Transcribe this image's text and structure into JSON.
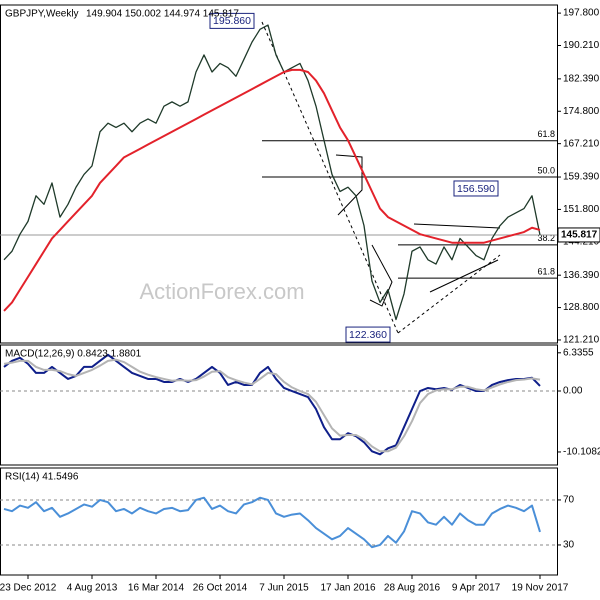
{
  "chart_data": [
    {
      "type": "line",
      "title": "GBPJPY,Weekly",
      "ohlc": "149.904 150.002 144.974 145.817",
      "ylim": [
        120.5,
        199.7
      ],
      "yticks": [
        {
          "value": 197.8,
          "label": "197.800"
        },
        {
          "value": 190.21,
          "label": "190.210"
        },
        {
          "value": 182.39,
          "label": "182.390"
        },
        {
          "value": 174.8,
          "label": "174.800"
        },
        {
          "value": 167.21,
          "label": "167.210"
        },
        {
          "value": 159.39,
          "label": "159.390"
        },
        {
          "value": 151.8,
          "label": "151.800"
        },
        {
          "value": 144.21,
          "label": "144.210"
        },
        {
          "value": 136.39,
          "label": "136.390"
        },
        {
          "value": 128.8,
          "label": "128.800"
        },
        {
          "value": 121.21,
          "label": "121.210"
        }
      ],
      "grid": false,
      "series": [
        {
          "name": "GBPJPY",
          "color": "#1f3a2a",
          "values": [
            140,
            142,
            146,
            149,
            155,
            153,
            158,
            150,
            153,
            157,
            160,
            162,
            170,
            172,
            171,
            172,
            170,
            172,
            173,
            172,
            176,
            177,
            176,
            177,
            184,
            188,
            184,
            186,
            185,
            183,
            187,
            191,
            194,
            195,
            188,
            184,
            185,
            186,
            182,
            176,
            168,
            160,
            156,
            157,
            155,
            148,
            135,
            130,
            133,
            126,
            132,
            142,
            143,
            140,
            139,
            143,
            140,
            145,
            143,
            141,
            140,
            145,
            148,
            150,
            151,
            152,
            155,
            145.817
          ]
        },
        {
          "name": "MA",
          "color": "#e3222b",
          "values": [
            128,
            130,
            133,
            136,
            139,
            142,
            145,
            147,
            149,
            151,
            153,
            155,
            158,
            160,
            162,
            164,
            165,
            166,
            167,
            168,
            169,
            170,
            171,
            172,
            173,
            174,
            175,
            176,
            177,
            178,
            179,
            180,
            181,
            182,
            183,
            184,
            184.5,
            184.5,
            184,
            182,
            179,
            175,
            171,
            168,
            164,
            160,
            156,
            152,
            150,
            149,
            148,
            147,
            146,
            145.5,
            145,
            144.5,
            144,
            144,
            144,
            144,
            144,
            144.5,
            145,
            145.5,
            146,
            146.5,
            147.5,
            147
          ]
        }
      ],
      "levels": [
        {
          "label": "61.8",
          "value": 167.9
        },
        {
          "label": "50.0",
          "value": 159.4
        },
        {
          "label": "38.2",
          "value": 143.5
        },
        {
          "label": "61.8",
          "value": 135.7
        }
      ],
      "annotations": [
        {
          "label": "195.860",
          "value": 195.86
        },
        {
          "label": "122.360",
          "value": 122.36
        },
        {
          "label": "156.590",
          "value": 156.59
        }
      ],
      "last": {
        "label": "145.817",
        "value": 145.817
      },
      "watermark": "ActionForex.com"
    },
    {
      "type": "line",
      "title": "MACD(12,26,9) 0.8423 1.8801",
      "ylim": [
        -12.27,
        7.63
      ],
      "yticks": [
        6.3355,
        {
          "value": 0,
          "label": "0.00"
        },
        -10.1082
      ],
      "zero_line": true,
      "series": [
        {
          "name": "MACD",
          "color": "#0f1f8a",
          "values": [
            4,
            5,
            5.5,
            4.5,
            3,
            3,
            4,
            3,
            2,
            2.5,
            4,
            4,
            5,
            6,
            5,
            4,
            3,
            2.5,
            2,
            2,
            1.5,
            1.5,
            2,
            1.5,
            2,
            3,
            4,
            3,
            1,
            1.5,
            1,
            1,
            3,
            4,
            2,
            0.5,
            0,
            -0.5,
            -1,
            -3,
            -6,
            -8,
            -8,
            -7,
            -7.5,
            -8.5,
            -10,
            -10.5,
            -9.5,
            -9,
            -6,
            -3,
            0,
            0.5,
            0.3,
            0.5,
            0.2,
            1,
            0.5,
            0,
            0,
            1,
            1.5,
            1.8,
            2,
            2,
            2.2,
            0.8423
          ]
        },
        {
          "name": "Signal",
          "color": "#b4b4b4",
          "values": [
            4.5,
            4.7,
            5,
            5,
            4,
            3.5,
            3.5,
            3.3,
            2.8,
            2.5,
            3,
            3.5,
            4.2,
            5,
            5.2,
            4.8,
            4,
            3.2,
            2.7,
            2.3,
            2,
            1.7,
            1.8,
            1.7,
            1.8,
            2.4,
            3.2,
            3.3,
            2.3,
            1.8,
            1.4,
            1.1,
            2,
            3,
            2.8,
            1.5,
            0.6,
            0,
            -0.5,
            -1.8,
            -4,
            -6.2,
            -7.4,
            -7.3,
            -7.3,
            -8,
            -9.2,
            -10,
            -10,
            -9.4,
            -7.5,
            -5,
            -2,
            -0.5,
            0.1,
            0.3,
            0.3,
            0.7,
            0.7,
            0.3,
            0.1,
            0.6,
            1.1,
            1.5,
            1.8,
            1.9,
            2.1,
            1.8801
          ]
        }
      ]
    },
    {
      "type": "line",
      "title": "RSI(14) 41.5496",
      "ylim": [
        3.3,
        98.4
      ],
      "yticks": [
        70,
        30
      ],
      "grid": true,
      "categories": [
        null,
        null,
        null,
        "23 Dec 2012",
        null,
        null,
        null,
        null,
        null,
        null,
        null,
        "4 Aug 2013",
        null,
        null,
        null,
        null,
        null,
        null,
        null,
        "16 Mar 2014",
        null,
        null,
        null,
        null,
        null,
        null,
        null,
        "26 Oct 2014",
        null,
        null,
        null,
        null,
        null,
        null,
        null,
        "7 Jun 2015",
        null,
        null,
        null,
        null,
        null,
        null,
        null,
        "17 Jan 2016",
        null,
        null,
        null,
        null,
        null,
        null,
        null,
        "28 Aug 2016",
        null,
        null,
        null,
        null,
        null,
        null,
        null,
        "9 Apr 2017",
        null,
        null,
        null,
        null,
        null,
        null,
        null,
        "19 Nov 2017"
      ],
      "series": [
        {
          "name": "RSI",
          "color": "#4a8fd8",
          "values": [
            62,
            60,
            65,
            63,
            68,
            60,
            63,
            55,
            58,
            62,
            66,
            64,
            70,
            68,
            60,
            62,
            58,
            63,
            60,
            58,
            62,
            63,
            60,
            61,
            70,
            72,
            62,
            65,
            60,
            58,
            66,
            68,
            72,
            70,
            58,
            55,
            57,
            58,
            52,
            45,
            40,
            35,
            38,
            45,
            40,
            35,
            28,
            30,
            38,
            32,
            42,
            60,
            58,
            50,
            48,
            55,
            48,
            58,
            52,
            48,
            48,
            58,
            62,
            65,
            63,
            60,
            65,
            41.5496
          ]
        }
      ]
    }
  ]
}
